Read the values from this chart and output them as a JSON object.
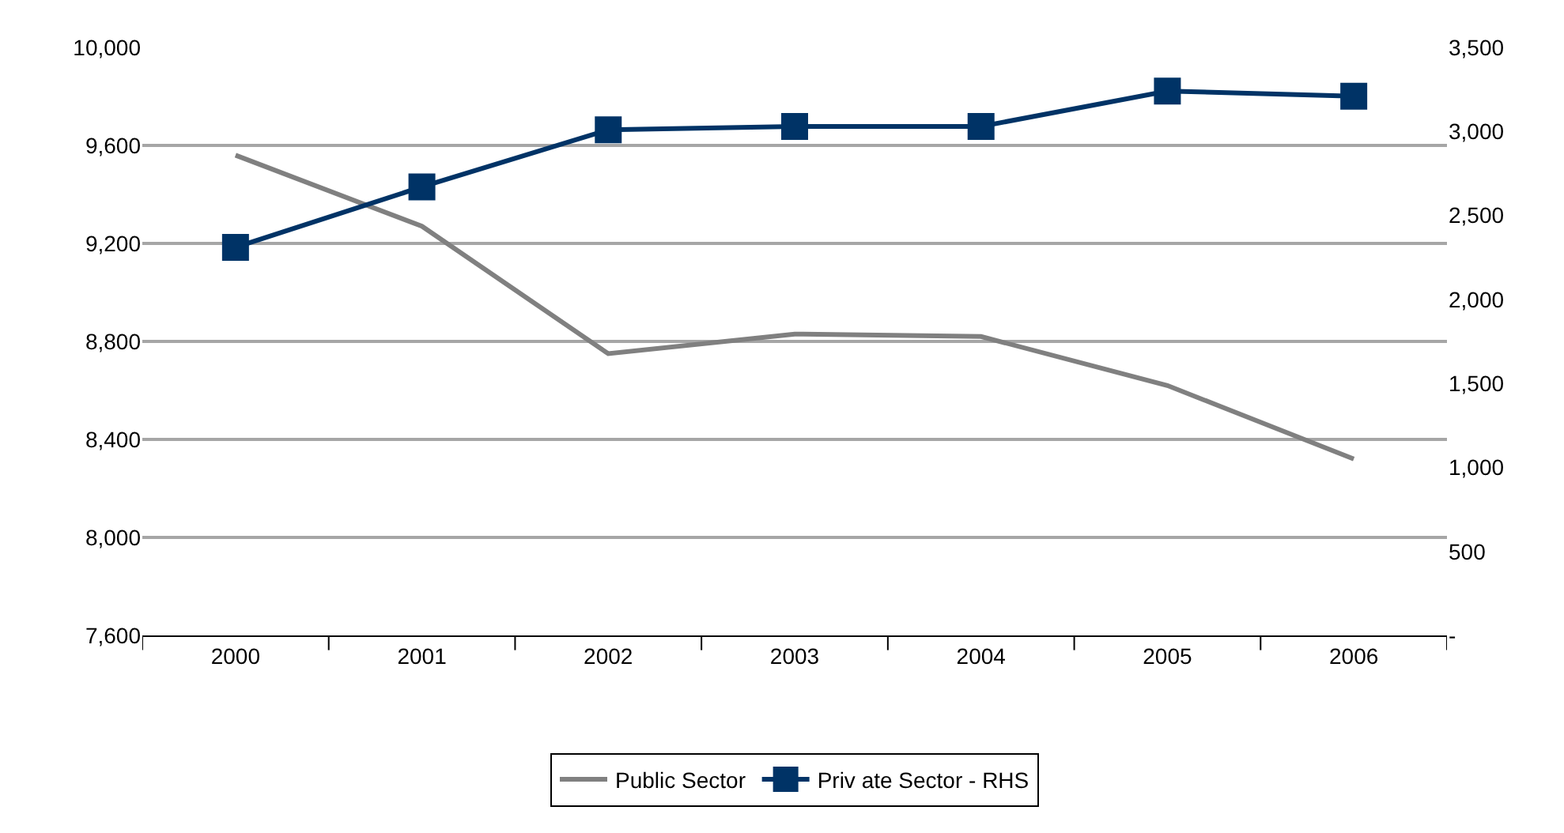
{
  "chart_data": {
    "type": "line",
    "categories": [
      "2000",
      "2001",
      "2002",
      "2003",
      "2004",
      "2005",
      "2006"
    ],
    "series": [
      {
        "name": "Public Sector",
        "color": "#808080",
        "values": [
          9560,
          9270,
          8750,
          8830,
          8820,
          8620,
          8320
        ],
        "marker": "none"
      },
      {
        "name": "Priv ate Sector - RHS",
        "color": "#003366",
        "values": [
          2310,
          2670,
          3010,
          3030,
          3030,
          3240,
          3210
        ],
        "axis": "y2",
        "marker": "square"
      }
    ],
    "ylim": [
      7600,
      10000
    ],
    "yticks": [
      {
        "value": 7600,
        "label": "7,600"
      },
      {
        "value": 8000,
        "label": "8,000"
      },
      {
        "value": 8400,
        "label": "8,400"
      },
      {
        "value": 8800,
        "label": "8,800"
      },
      {
        "value": 9200,
        "label": "9,200"
      },
      {
        "value": 9600,
        "label": "9,600"
      },
      {
        "value": 10000,
        "label": "10,000"
      }
    ],
    "y2lim": [
      0,
      3500
    ],
    "y2ticks": [
      {
        "value": 0,
        "label": "-"
      },
      {
        "value": 500,
        "label": "500"
      },
      {
        "value": 1000,
        "label": "1,000"
      },
      {
        "value": 1500,
        "label": "1,500"
      },
      {
        "value": 2000,
        "label": "2,000"
      },
      {
        "value": 2500,
        "label": "2,500"
      },
      {
        "value": 3000,
        "label": "3,000"
      },
      {
        "value": 3500,
        "label": "3,500"
      }
    ],
    "grid": "y",
    "legend": "bottom",
    "line_style": "solid"
  }
}
